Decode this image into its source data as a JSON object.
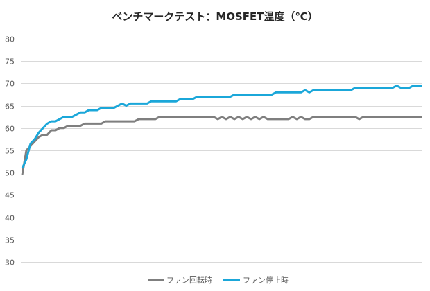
{
  "chart_data": {
    "type": "line",
    "title": "ベンチマークテスト：MOSFET温度（℃）",
    "ylim": [
      30,
      80
    ],
    "yticks": [
      30,
      35,
      40,
      45,
      50,
      55,
      60,
      65,
      70,
      75,
      80
    ],
    "grid": true,
    "legend_position": "bottom",
    "series": [
      {
        "name": "ファン回転時",
        "color": "#7f7f7f",
        "values": [
          49.5,
          55,
          56,
          57,
          58,
          58.5,
          58.5,
          59.5,
          59.5,
          60,
          60,
          60.5,
          60.5,
          60.5,
          60.5,
          61,
          61,
          61,
          61,
          61,
          61.5,
          61.5,
          61.5,
          61.5,
          61.5,
          61.5,
          61.5,
          61.5,
          62,
          62,
          62,
          62,
          62,
          62.5,
          62.5,
          62.5,
          62.5,
          62.5,
          62.5,
          62.5,
          62.5,
          62.5,
          62.5,
          62.5,
          62.5,
          62.5,
          62.5,
          62,
          62.5,
          62,
          62.5,
          62,
          62.5,
          62,
          62.5,
          62,
          62.5,
          62,
          62.5,
          62,
          62,
          62,
          62,
          62,
          62,
          62.5,
          62,
          62.5,
          62,
          62,
          62.5,
          62.5,
          62.5,
          62.5,
          62.5,
          62.5,
          62.5,
          62.5,
          62.5,
          62.5,
          62.5,
          62,
          62.5,
          62.5,
          62.5,
          62.5,
          62.5,
          62.5,
          62.5,
          62.5,
          62.5,
          62.5,
          62.5,
          62.5,
          62.5,
          62.5,
          62.5
        ]
      },
      {
        "name": "ファン停止時",
        "color": "#1ba7d9",
        "values": [
          51,
          53,
          56.5,
          57.5,
          59,
          60,
          61,
          61.5,
          61.5,
          62,
          62.5,
          62.5,
          62.5,
          63,
          63.5,
          63.5,
          64,
          64,
          64,
          64.5,
          64.5,
          64.5,
          64.5,
          65,
          65.5,
          65,
          65.5,
          65.5,
          65.5,
          65.5,
          65.5,
          66,
          66,
          66,
          66,
          66,
          66,
          66,
          66.5,
          66.5,
          66.5,
          66.5,
          67,
          67,
          67,
          67,
          67,
          67,
          67,
          67,
          67,
          67.5,
          67.5,
          67.5,
          67.5,
          67.5,
          67.5,
          67.5,
          67.5,
          67.5,
          67.5,
          68,
          68,
          68,
          68,
          68,
          68,
          68,
          68.5,
          68,
          68.5,
          68.5,
          68.5,
          68.5,
          68.5,
          68.5,
          68.5,
          68.5,
          68.5,
          68.5,
          69,
          69,
          69,
          69,
          69,
          69,
          69,
          69,
          69,
          69,
          69.5,
          69,
          69,
          69,
          69.5,
          69.5,
          69.5
        ]
      }
    ]
  }
}
